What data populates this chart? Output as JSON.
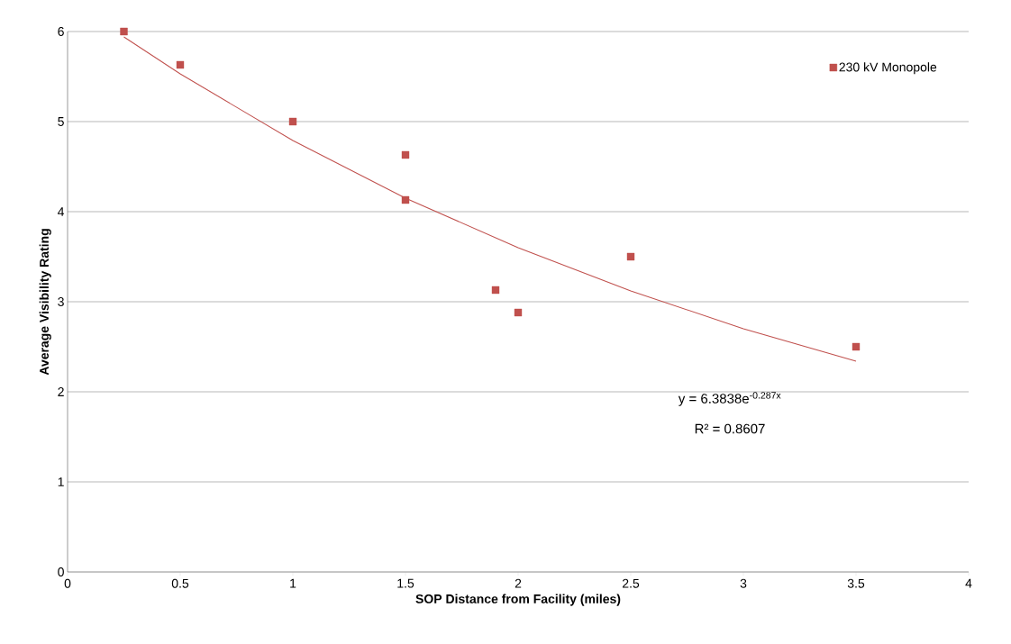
{
  "chart_data": {
    "type": "scatter",
    "xlabel": "SOP Distance from Facility (miles)",
    "ylabel": "Average Visibility Rating",
    "series": [
      {
        "name": "230 kV Monopole",
        "type": "scatter",
        "color": "#c0504d",
        "marker": "square",
        "x": [
          0.25,
          0.5,
          1.0,
          1.5,
          1.5,
          1.9,
          2.0,
          2.5,
          3.5
        ],
        "values": [
          6.0,
          5.63,
          5.0,
          4.63,
          4.13,
          3.13,
          2.88,
          3.5,
          2.5
        ]
      },
      {
        "type": "line",
        "color": "#c0504d",
        "x": [
          0.25,
          0.5,
          1.0,
          1.5,
          2.0,
          2.5,
          3.0,
          3.5
        ],
        "values": [
          5.94,
          5.53,
          4.79,
          4.15,
          3.6,
          3.12,
          2.7,
          2.34
        ]
      }
    ],
    "xlim": [
      0,
      4
    ],
    "xticks": [
      0,
      0.5,
      1,
      1.5,
      2,
      2.5,
      3,
      3.5,
      4
    ],
    "ylim": [
      0,
      6
    ],
    "yticks": [
      0,
      1,
      2,
      3,
      4,
      5,
      6
    ],
    "grid": "y",
    "legend": "top right",
    "annotations": [
      "y = 6.3838e$^{-0.287x}$",
      "R² = 0.8607"
    ]
  }
}
